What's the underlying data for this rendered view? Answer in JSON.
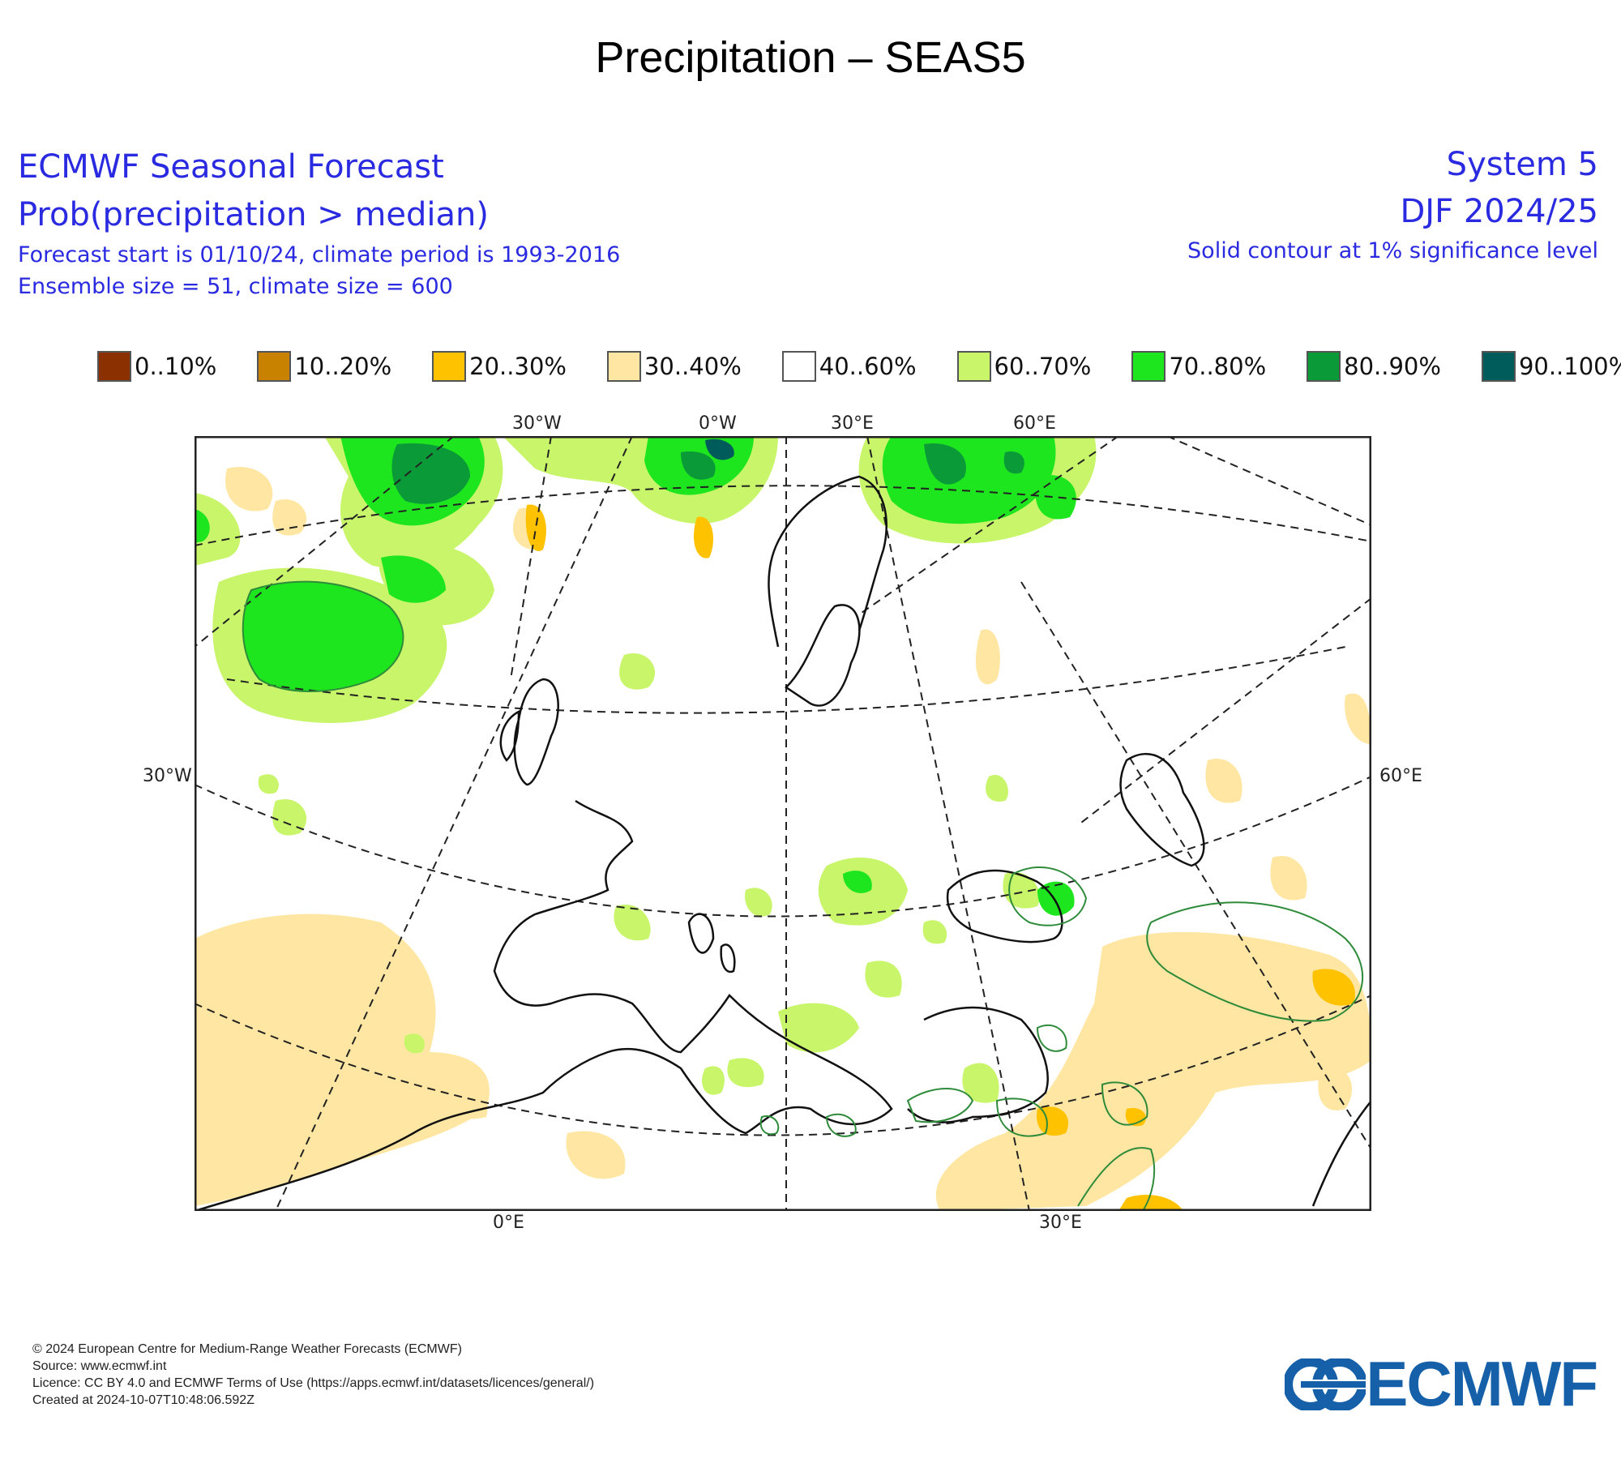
{
  "title": "Precipitation – SEAS5",
  "header": {
    "left_line1": "ECMWF Seasonal Forecast",
    "left_line2": "Prob(precipitation > median)",
    "left_line3": "Forecast start is 01/10/24, climate period is 1993-2016",
    "left_line4": "Ensemble size = 51, climate size = 600",
    "right_line1": "System 5",
    "right_line2": "DJF 2024/25",
    "right_line3": "Solid contour at 1% significance level"
  },
  "legend": [
    {
      "label": "0..10%",
      "color": "#8b3000"
    },
    {
      "label": "10..20%",
      "color": "#c98200"
    },
    {
      "label": "20..30%",
      "color": "#ffc200"
    },
    {
      "label": "30..40%",
      "color": "#ffe7a3"
    },
    {
      "label": "40..60%",
      "color": "#ffffff"
    },
    {
      "label": "60..70%",
      "color": "#c8f56a"
    },
    {
      "label": "70..80%",
      "color": "#1ee61e"
    },
    {
      "label": "80..90%",
      "color": "#0a9a37"
    },
    {
      "label": "90..100%",
      "color": "#005c5a"
    }
  ],
  "map": {
    "top_labels": [
      "30°W",
      "0°W",
      "30°E",
      "60°E"
    ],
    "bottom_labels": [
      "0°E",
      "30°E"
    ],
    "left_label": "30°W",
    "right_label": "60°E"
  },
  "footer": {
    "line1": "© 2024 European Centre for Medium-Range Weather Forecasts (ECMWF)",
    "line2": "Source: www.ecmwf.int",
    "line3": "Licence: CC BY 4.0 and ECMWF Terms of Use (https://apps.ecmwf.int/datasets/licences/general/)",
    "line4": "Created at 2024-10-07T10:48:06.592Z"
  },
  "logo_text": "ECMWF"
}
